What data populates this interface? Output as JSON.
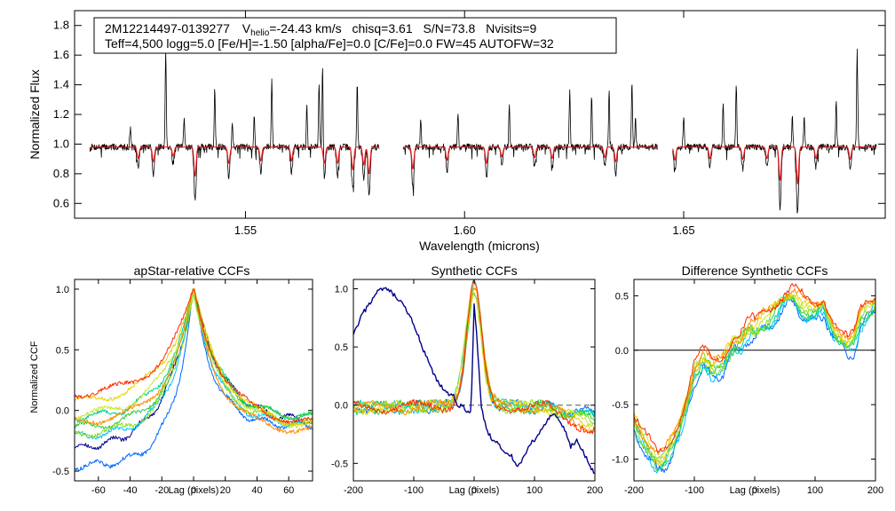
{
  "colors": {
    "observed": "#000000",
    "model": "#e41a1c",
    "zero_line": "#000000",
    "dashed_line": "#555555",
    "ccf_palette": [
      "#00008b",
      "#0066ff",
      "#00c4ff",
      "#00d28c",
      "#33cc33",
      "#88dd22",
      "#c8e632",
      "#e6d200",
      "#ff8c00",
      "#ff2a00"
    ]
  },
  "chart_data": [
    {
      "type": "line",
      "id": "spectrum",
      "title": "",
      "info_line1_parts": {
        "star_id": "2M12214497-0139277",
        "vhelio_prefix": "V",
        "vhelio_subscript": "helio",
        "vhelio_value": "=-24.43 km/s",
        "chisq": "chisq=3.61",
        "sn": "S/N=73.8",
        "nvisits": "Nvisits=9"
      },
      "info_line2": "Teff=4,500 logg=5.0 [Fe/H]=-1.50 [alpha/Fe]=0.0 [C/Fe]=0.0 FW=45 AUTOFW=32",
      "xlabel": "Wavelength (microns)",
      "ylabel": "Normalized Flux",
      "xlim": [
        1.511,
        1.696
      ],
      "ylim": [
        0.5,
        1.9
      ],
      "xticks": [
        1.55,
        1.6,
        1.65
      ],
      "xtick_labels": [
        "1.55",
        "1.60",
        "1.65"
      ],
      "yticks": [
        0.6,
        0.8,
        1.0,
        1.2,
        1.4,
        1.6,
        1.8
      ],
      "ytick_labels": [
        "0.6",
        "0.8",
        "1.0",
        "1.2",
        "1.4",
        "1.6",
        "1.8"
      ],
      "continuum": 0.98,
      "noise": 0.022,
      "chip_ranges": [
        [
          1.5145,
          1.5805
        ],
        [
          1.586,
          1.644
        ],
        [
          1.6475,
          1.694
        ]
      ],
      "emission_spikes": [
        {
          "x": 1.5237,
          "y": 1.13
        },
        {
          "x": 1.5318,
          "y": 1.63
        },
        {
          "x": 1.536,
          "y": 1.17
        },
        {
          "x": 1.543,
          "y": 1.38
        },
        {
          "x": 1.547,
          "y": 1.15
        },
        {
          "x": 1.552,
          "y": 1.18
        },
        {
          "x": 1.556,
          "y": 1.42
        },
        {
          "x": 1.564,
          "y": 1.27
        },
        {
          "x": 1.5668,
          "y": 1.41
        },
        {
          "x": 1.5676,
          "y": 1.58
        },
        {
          "x": 1.5755,
          "y": 1.4
        },
        {
          "x": 1.59,
          "y": 1.18
        },
        {
          "x": 1.5985,
          "y": 1.21
        },
        {
          "x": 1.6102,
          "y": 1.27
        },
        {
          "x": 1.624,
          "y": 1.36
        },
        {
          "x": 1.629,
          "y": 1.33
        },
        {
          "x": 1.633,
          "y": 1.35
        },
        {
          "x": 1.6382,
          "y": 1.42
        },
        {
          "x": 1.639,
          "y": 1.2
        },
        {
          "x": 1.65,
          "y": 1.2
        },
        {
          "x": 1.659,
          "y": 1.28
        },
        {
          "x": 1.662,
          "y": 1.4
        },
        {
          "x": 1.6748,
          "y": 1.19
        },
        {
          "x": 1.6775,
          "y": 1.2
        },
        {
          "x": 1.6848,
          "y": 1.28
        },
        {
          "x": 1.6896,
          "y": 1.64
        }
      ],
      "absorption_lines": [
        {
          "x": 1.514,
          "y": 0.82
        },
        {
          "x": 1.5255,
          "y": 0.84
        },
        {
          "x": 1.529,
          "y": 0.8
        },
        {
          "x": 1.5335,
          "y": 0.87
        },
        {
          "x": 1.5385,
          "y": 0.62
        },
        {
          "x": 1.5462,
          "y": 0.78
        },
        {
          "x": 1.5535,
          "y": 0.81
        },
        {
          "x": 1.5605,
          "y": 0.81
        },
        {
          "x": 1.568,
          "y": 0.78
        },
        {
          "x": 1.571,
          "y": 0.78
        },
        {
          "x": 1.5745,
          "y": 0.7
        },
        {
          "x": 1.577,
          "y": 0.76
        },
        {
          "x": 1.5782,
          "y": 0.65
        },
        {
          "x": 1.5882,
          "y": 0.71
        },
        {
          "x": 1.596,
          "y": 0.82
        },
        {
          "x": 1.605,
          "y": 0.78
        },
        {
          "x": 1.6085,
          "y": 0.86
        },
        {
          "x": 1.616,
          "y": 0.85
        },
        {
          "x": 1.62,
          "y": 0.84
        },
        {
          "x": 1.632,
          "y": 0.85
        },
        {
          "x": 1.6345,
          "y": 0.8
        },
        {
          "x": 1.648,
          "y": 0.82
        },
        {
          "x": 1.656,
          "y": 0.84
        },
        {
          "x": 1.6635,
          "y": 0.83
        },
        {
          "x": 1.669,
          "y": 0.84
        },
        {
          "x": 1.672,
          "y": 0.57
        },
        {
          "x": 1.676,
          "y": 0.53
        },
        {
          "x": 1.6802,
          "y": 0.84
        },
        {
          "x": 1.688,
          "y": 0.83
        }
      ]
    },
    {
      "type": "line",
      "id": "apstar-ccf",
      "title": "apStar-relative CCFs",
      "xlabel": "Lag (pixels)",
      "ylabel": "Normalized CCF",
      "xlim": [
        -75,
        75
      ],
      "ylim": [
        -0.58,
        1.08
      ],
      "xticks": [
        -60,
        -40,
        -20,
        0,
        20,
        40,
        60
      ],
      "xtick_labels": [
        "-60",
        "-40",
        "-20",
        "0",
        "20",
        "40",
        "60"
      ],
      "yticks": [
        -0.5,
        0.0,
        0.5,
        1.0
      ],
      "ytick_labels": [
        "-0.5",
        "0.0",
        "0.5",
        "1.0"
      ],
      "n_series": 10,
      "left_levels": [
        -0.33,
        -0.46,
        -0.22,
        -0.07,
        -0.15,
        -0.2,
        -0.05,
        0.05,
        -0.1,
        0.12
      ],
      "right_levels": [
        -0.1,
        -0.13,
        -0.12,
        -0.07,
        -0.06,
        -0.1,
        -0.14,
        -0.14,
        -0.18,
        -0.12
      ],
      "widths": [
        18,
        13,
        15,
        17,
        16,
        15,
        18,
        20,
        16,
        19
      ],
      "peak": 1.0
    },
    {
      "type": "line",
      "id": "synthetic-ccf",
      "title": "Synthetic CCFs",
      "xlabel": "Lag (pixels)",
      "ylabel": "",
      "xlim": [
        -200,
        200
      ],
      "ylim": [
        -0.65,
        1.08
      ],
      "xticks": [
        -200,
        -100,
        0,
        100,
        200
      ],
      "xtick_labels": [
        "-200",
        "-100",
        "0",
        "100",
        "200"
      ],
      "yticks": [
        -0.5,
        0.0,
        0.5,
        1.0
      ],
      "ytick_labels": [
        "-0.5",
        "0.0",
        "0.5",
        "1.0"
      ],
      "dashed_baseline": 0.0,
      "outlier_series": {
        "x": [
          -200,
          -185,
          -170,
          -160,
          -150,
          -140,
          -130,
          -115,
          -100,
          -85,
          -75,
          -65,
          -55,
          -45,
          -35,
          -28,
          -20,
          -12,
          -5,
          0,
          5,
          12,
          20,
          30,
          40,
          50,
          60,
          70,
          80,
          90,
          100,
          110,
          120,
          130,
          140,
          150,
          160,
          170,
          180,
          190,
          200
        ],
        "y": [
          0.6,
          0.78,
          0.9,
          0.97,
          1.0,
          0.98,
          0.93,
          0.84,
          0.7,
          0.48,
          0.36,
          0.24,
          0.16,
          0.1,
          0.1,
          -0.02,
          0.0,
          -0.06,
          -0.04,
          0.86,
          0.55,
          -0.02,
          -0.2,
          -0.3,
          -0.33,
          -0.42,
          -0.42,
          -0.52,
          -0.47,
          -0.35,
          -0.3,
          -0.22,
          -0.14,
          -0.08,
          -0.12,
          -0.22,
          -0.36,
          -0.3,
          -0.4,
          -0.5,
          -0.6
        ]
      },
      "peaks": [
        1.0,
        0.98,
        0.93,
        0.95,
        0.96,
        0.97,
        0.94,
        1.0,
        0.99
      ],
      "widths": [
        12,
        13,
        14,
        12,
        13,
        14,
        12,
        13,
        12
      ]
    },
    {
      "type": "line",
      "id": "difference-ccf",
      "title": "Difference Synthetic CCFs",
      "xlabel": "Lag (pixels)",
      "ylabel": "",
      "xlim": [
        -200,
        200
      ],
      "ylim": [
        -1.2,
        0.65
      ],
      "xticks": [
        -200,
        -100,
        0,
        100,
        200
      ],
      "xtick_labels": [
        "-200",
        "-100",
        "0",
        "100",
        "200"
      ],
      "yticks": [
        -1.0,
        -0.5,
        0.0,
        0.5
      ],
      "ytick_labels": [
        "-1.0",
        "-0.5",
        "0.0",
        "0.5"
      ],
      "zero_line": 0.0,
      "base_curve": {
        "x": [
          -200,
          -185,
          -170,
          -160,
          -150,
          -140,
          -125,
          -110,
          -100,
          -85,
          -70,
          -55,
          -45,
          -35,
          -25,
          -15,
          -5,
          0,
          10,
          25,
          40,
          55,
          65,
          75,
          85,
          100,
          115,
          130,
          145,
          155,
          165,
          175,
          185,
          200
        ],
        "y": [
          -0.66,
          -0.82,
          -0.96,
          -1.04,
          -1.0,
          -0.9,
          -0.72,
          -0.44,
          -0.2,
          -0.08,
          -0.18,
          -0.14,
          -0.04,
          0.06,
          0.06,
          0.16,
          0.2,
          0.17,
          0.24,
          0.3,
          0.4,
          0.49,
          0.52,
          0.44,
          0.36,
          0.32,
          0.4,
          0.22,
          0.1,
          0.02,
          0.06,
          0.28,
          0.36,
          0.44
        ]
      },
      "n_series": 9
    }
  ]
}
